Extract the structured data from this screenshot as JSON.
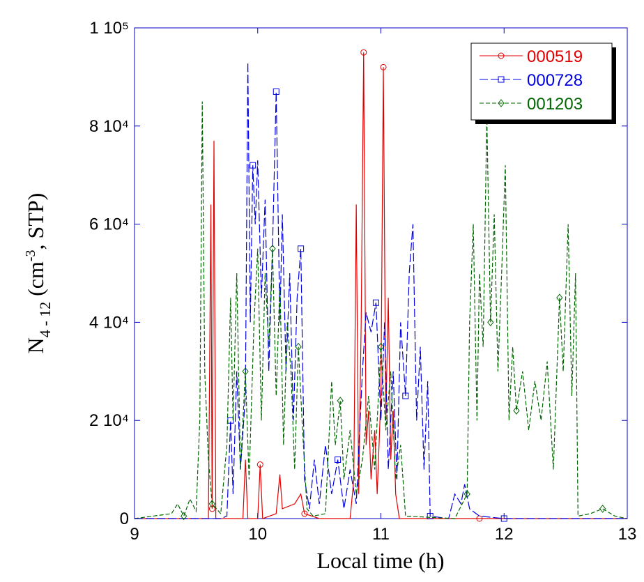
{
  "chart_data": {
    "type": "line",
    "xlabel": "Local time  (h)",
    "ylabel": {
      "main": "N",
      "sub": "4 - 12",
      "open": "  (cm",
      "sup": "-3",
      "close": ", STP)"
    },
    "xlim": [
      9,
      13
    ],
    "xticks": [
      9,
      10,
      11,
      12,
      13
    ],
    "ylim": [
      0,
      100000
    ],
    "yticks": [
      0,
      {
        "value": 20000,
        "label": "2 10⁴"
      },
      {
        "value": 40000,
        "label": "4 10⁴"
      },
      {
        "value": 60000,
        "label": "6 10⁴"
      },
      {
        "value": 80000,
        "label": "8 10⁴"
      },
      {
        "value": 100000,
        "label": "1 10⁵"
      }
    ],
    "legend": "top-right",
    "series": [
      {
        "name": "000519",
        "color": "#e00000",
        "dash": "solid",
        "marker": "circle",
        "x": [
          9.0,
          9.6,
          9.62,
          9.63,
          9.645,
          9.66,
          9.88,
          9.9,
          9.92,
          10.0,
          10.02,
          10.04,
          10.15,
          10.18,
          10.2,
          10.3,
          10.35,
          10.38,
          10.5,
          10.75,
          10.78,
          10.8,
          10.82,
          10.84,
          10.86,
          10.88,
          10.9,
          10.92,
          10.95,
          10.97,
          11.0,
          11.02,
          11.04,
          11.06,
          11.08,
          11.1,
          11.12,
          11.15,
          11.8,
          12.3,
          13.0
        ],
        "values": [
          0,
          0,
          64000,
          2000,
          77000,
          0,
          0,
          12000,
          0,
          0,
          11000,
          0,
          1000,
          9000,
          2000,
          3000,
          5000,
          1000,
          0,
          0,
          8000,
          64000,
          5000,
          40000,
          95000,
          15000,
          22000,
          8000,
          18000,
          5000,
          25000,
          92000,
          20000,
          45000,
          12000,
          22000,
          5000,
          0,
          0,
          0,
          0
        ]
      },
      {
        "name": "000728",
        "color": "#0000e0",
        "dash": "longdash",
        "marker": "square",
        "x": [
          9.0,
          9.7,
          9.75,
          9.78,
          9.8,
          9.83,
          9.86,
          9.9,
          9.92,
          9.94,
          9.96,
          9.98,
          10.0,
          10.03,
          10.06,
          10.09,
          10.12,
          10.15,
          10.18,
          10.2,
          10.23,
          10.26,
          10.29,
          10.32,
          10.35,
          10.38,
          10.42,
          10.46,
          10.5,
          10.55,
          10.6,
          10.65,
          10.7,
          10.75,
          10.8,
          10.85,
          10.88,
          10.92,
          10.96,
          11.0,
          11.03,
          11.06,
          11.1,
          11.13,
          11.16,
          11.2,
          11.23,
          11.26,
          11.29,
          11.32,
          11.35,
          11.38,
          11.4,
          11.55,
          11.6,
          11.65,
          11.68,
          11.72,
          11.8,
          12.0,
          12.4,
          13.0
        ],
        "values": [
          0,
          0,
          500,
          20000,
          5000,
          30000,
          10000,
          25000,
          93000,
          40000,
          72000,
          60000,
          73000,
          45000,
          65000,
          30000,
          55000,
          87000,
          40000,
          62000,
          30000,
          50000,
          20000,
          45000,
          55000,
          8000,
          2000,
          12000,
          3000,
          15000,
          5000,
          12000,
          2000,
          10000,
          3000,
          30000,
          42000,
          38000,
          44000,
          20000,
          40000,
          10000,
          30000,
          8000,
          40000,
          25000,
          50000,
          60000,
          20000,
          35000,
          10000,
          28000,
          500,
          0,
          5000,
          3000,
          7000,
          2000,
          500,
          0,
          0,
          0
        ]
      },
      {
        "name": "001203",
        "color": "#006600",
        "dash": "dashed",
        "marker": "diamond",
        "x": [
          9.0,
          9.3,
          9.35,
          9.4,
          9.45,
          9.5,
          9.53,
          9.55,
          9.57,
          9.6,
          9.63,
          9.7,
          9.75,
          9.78,
          9.8,
          9.83,
          9.86,
          9.9,
          9.93,
          9.97,
          10.0,
          10.03,
          10.06,
          10.09,
          10.12,
          10.15,
          10.18,
          10.21,
          10.24,
          10.27,
          10.3,
          10.33,
          10.36,
          10.4,
          10.45,
          10.55,
          10.6,
          10.63,
          10.67,
          10.7,
          10.75,
          10.8,
          10.85,
          10.9,
          10.95,
          11.0,
          11.04,
          11.08,
          11.12,
          11.16,
          11.2,
          11.6,
          11.7,
          11.72,
          11.75,
          11.78,
          11.8,
          11.83,
          11.86,
          11.89,
          11.92,
          11.95,
          11.98,
          12.01,
          12.04,
          12.07,
          12.1,
          12.15,
          12.2,
          12.25,
          12.3,
          12.35,
          12.4,
          12.45,
          12.48,
          12.52,
          12.55,
          12.58,
          12.6,
          12.7,
          12.8,
          12.9,
          13.0
        ],
        "values": [
          0,
          1000,
          3000,
          500,
          4000,
          1500,
          20000,
          85000,
          30000,
          12000,
          3000,
          1000,
          15000,
          45000,
          20000,
          50000,
          10000,
          30000,
          8000,
          40000,
          55000,
          20000,
          50000,
          35000,
          55000,
          25000,
          48000,
          15000,
          40000,
          30000,
          10000,
          35000,
          20000,
          2000,
          500,
          1000,
          28000,
          15000,
          24000,
          8000,
          18000,
          5000,
          12000,
          25000,
          10000,
          35000,
          18000,
          30000,
          8000,
          15000,
          500,
          0,
          5000,
          40000,
          60000,
          20000,
          50000,
          35000,
          82000,
          40000,
          62000,
          30000,
          50000,
          72000,
          20000,
          35000,
          22000,
          30000,
          18000,
          28000,
          20000,
          32000,
          10000,
          45000,
          30000,
          60000,
          25000,
          50000,
          500,
          1000,
          2000,
          500,
          0
        ]
      }
    ]
  }
}
